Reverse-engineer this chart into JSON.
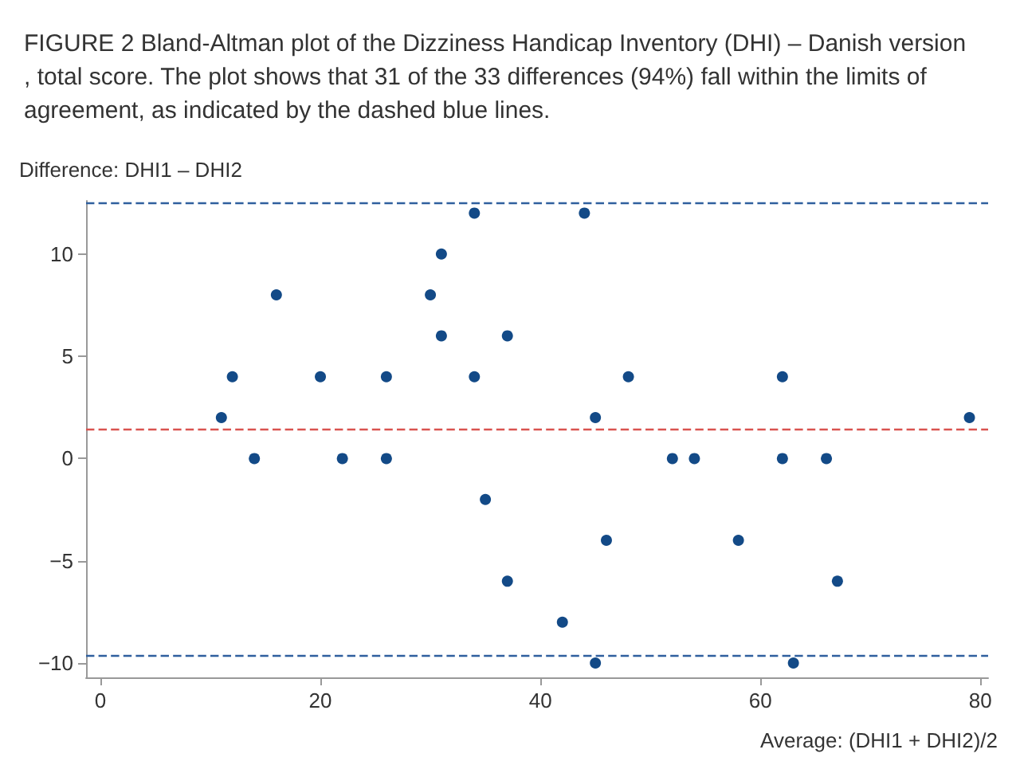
{
  "chart_data": {
    "type": "scatter",
    "title": "FIGURE 2 Bland-Altman plot of the Dizziness Handicap Inventory (DHI) – Danish version, total score. The plot shows that 31 of the 33 differences (94%) fall within the limits of agreement, as indicated by the dashed blue lines.",
    "xlabel": "Average: (DHI1 + DHI2)/2",
    "ylabel": "Difference: DHI1 – DHI2",
    "series": [
      {
        "color": "#134a87",
        "x": [
          11,
          12,
          14,
          16,
          20,
          22,
          26,
          26,
          30,
          31,
          31,
          34,
          34,
          37,
          44,
          45,
          48,
          52,
          54,
          62,
          62,
          66,
          79,
          35,
          37,
          42,
          45,
          46,
          58,
          63,
          67
        ],
        "values": [
          2,
          4,
          0,
          8,
          4,
          0,
          4,
          0,
          8,
          10,
          6,
          12,
          4,
          6,
          12,
          2,
          4,
          0,
          0,
          4,
          0,
          0,
          2,
          -2,
          -6,
          -8,
          -10,
          -4,
          -4,
          -10,
          -6
        ]
      }
    ],
    "xlim": [
      -1.3,
      80.7
    ],
    "xticks": [
      0,
      20,
      40,
      60,
      80
    ],
    "ylim": [
      -10.7,
      12.6
    ],
    "yticks": [
      -10,
      -5,
      0,
      5,
      10
    ],
    "ref_lines": [
      {
        "axis": "y",
        "value": 12.5,
        "color": "#2f5f9e",
        "line_style": "dashed"
      },
      {
        "axis": "y",
        "value": 1.4,
        "color": "#d9534f",
        "line_style": "dashed"
      },
      {
        "axis": "y",
        "value": -9.66,
        "color": "#2f5f9e",
        "line_style": "dashed"
      }
    ],
    "grid": false,
    "marker": "circle"
  }
}
